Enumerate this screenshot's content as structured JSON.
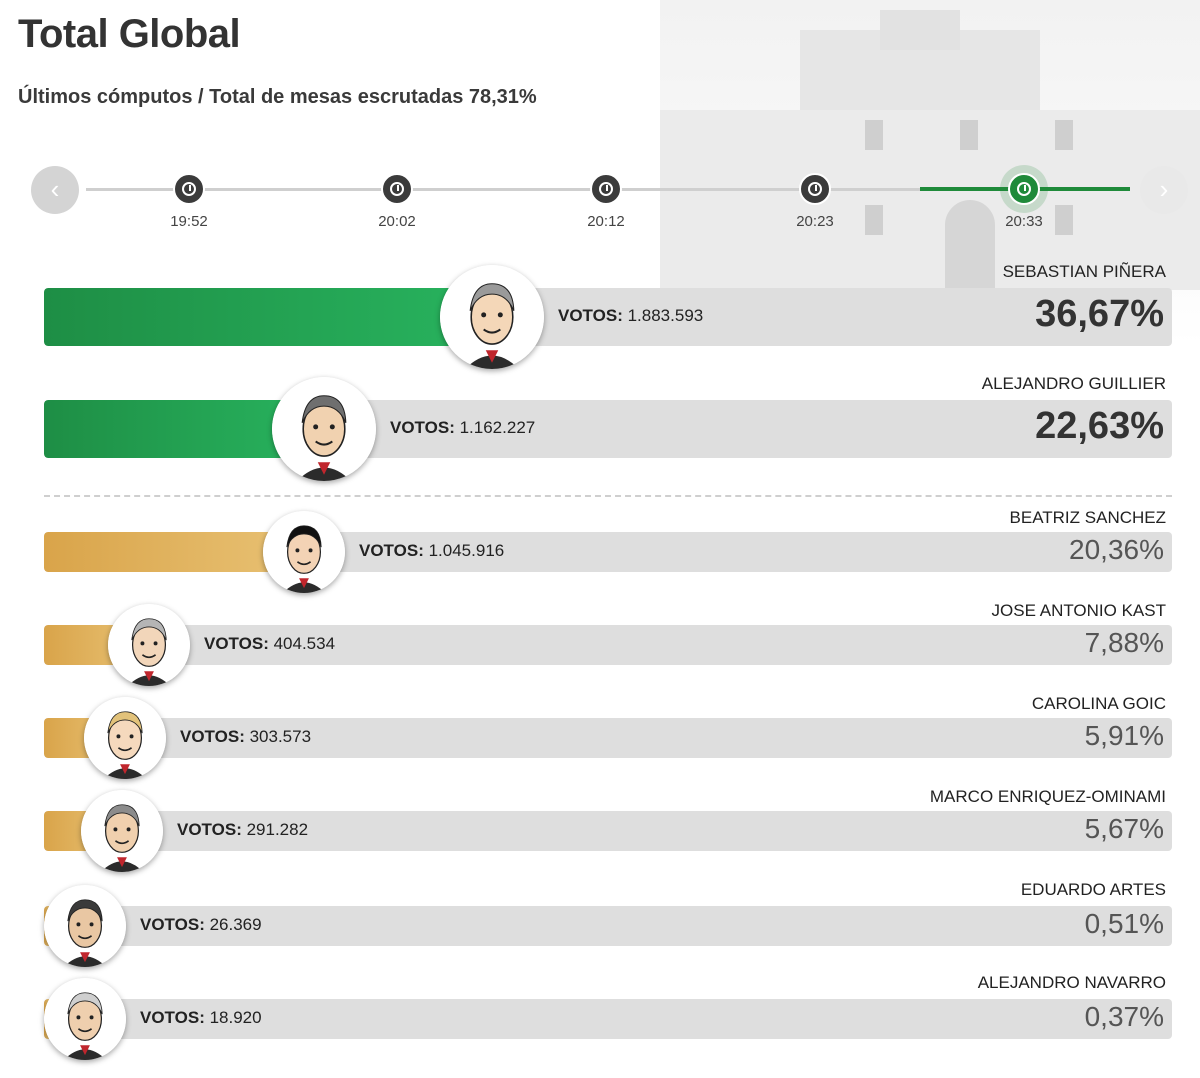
{
  "title": "Total Global",
  "subtitle": "Últimos cómputos / Total de mesas escrutadas 78,31%",
  "timeline": {
    "prev_icon": "chevron-left-icon",
    "next_icon": "chevron-right-icon",
    "times": [
      "19:52",
      "20:02",
      "20:12",
      "20:23",
      "20:33"
    ],
    "active": "20:33"
  },
  "votes_label": "VOTOS:",
  "colors": {
    "leader": "#1e8e45",
    "other": "#d9a44a",
    "track": "#dedede"
  },
  "chart_data": {
    "type": "bar",
    "categories": [
      "SEBASTIAN PIÑERA",
      "ALEJANDRO GUILLIER",
      "BEATRIZ SANCHEZ",
      "JOSE ANTONIO KAST",
      "CAROLINA GOIC",
      "MARCO ENRIQUEZ-OMINAMI",
      "EDUARDO ARTES",
      "ALEJANDRO NAVARRO"
    ],
    "values": [
      36.67,
      22.63,
      20.36,
      7.88,
      5.91,
      5.67,
      0.51,
      0.37
    ],
    "votes": [
      "1.883.593",
      "1.162.227",
      "1.045.916",
      "404.534",
      "303.573",
      "291.282",
      "26.369",
      "18.920"
    ],
    "percent_labels": [
      "36,67%",
      "22,63%",
      "20,36%",
      "7,88%",
      "5,91%",
      "5,67%",
      "0,51%",
      "0,37%"
    ],
    "ylim": [
      0,
      100
    ]
  }
}
